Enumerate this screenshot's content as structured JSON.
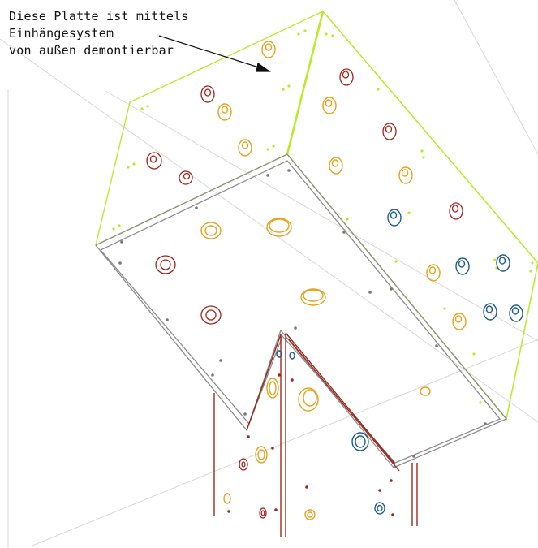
{
  "annotation": {
    "lines": [
      "Diese Platte ist mittels",
      "Einhängesystem",
      "von außen demontierbar"
    ]
  },
  "colors": {
    "panel_edge": "#b8ec2a",
    "frame": "#8c8c8c",
    "post": "#9c2a1c",
    "hold_red": "#a3221a",
    "hold_orange": "#e8a21a",
    "hold_blue": "#1c5c8c",
    "guide": "#d6d6d6",
    "bolt": "#777777",
    "leader": "#111111"
  }
}
